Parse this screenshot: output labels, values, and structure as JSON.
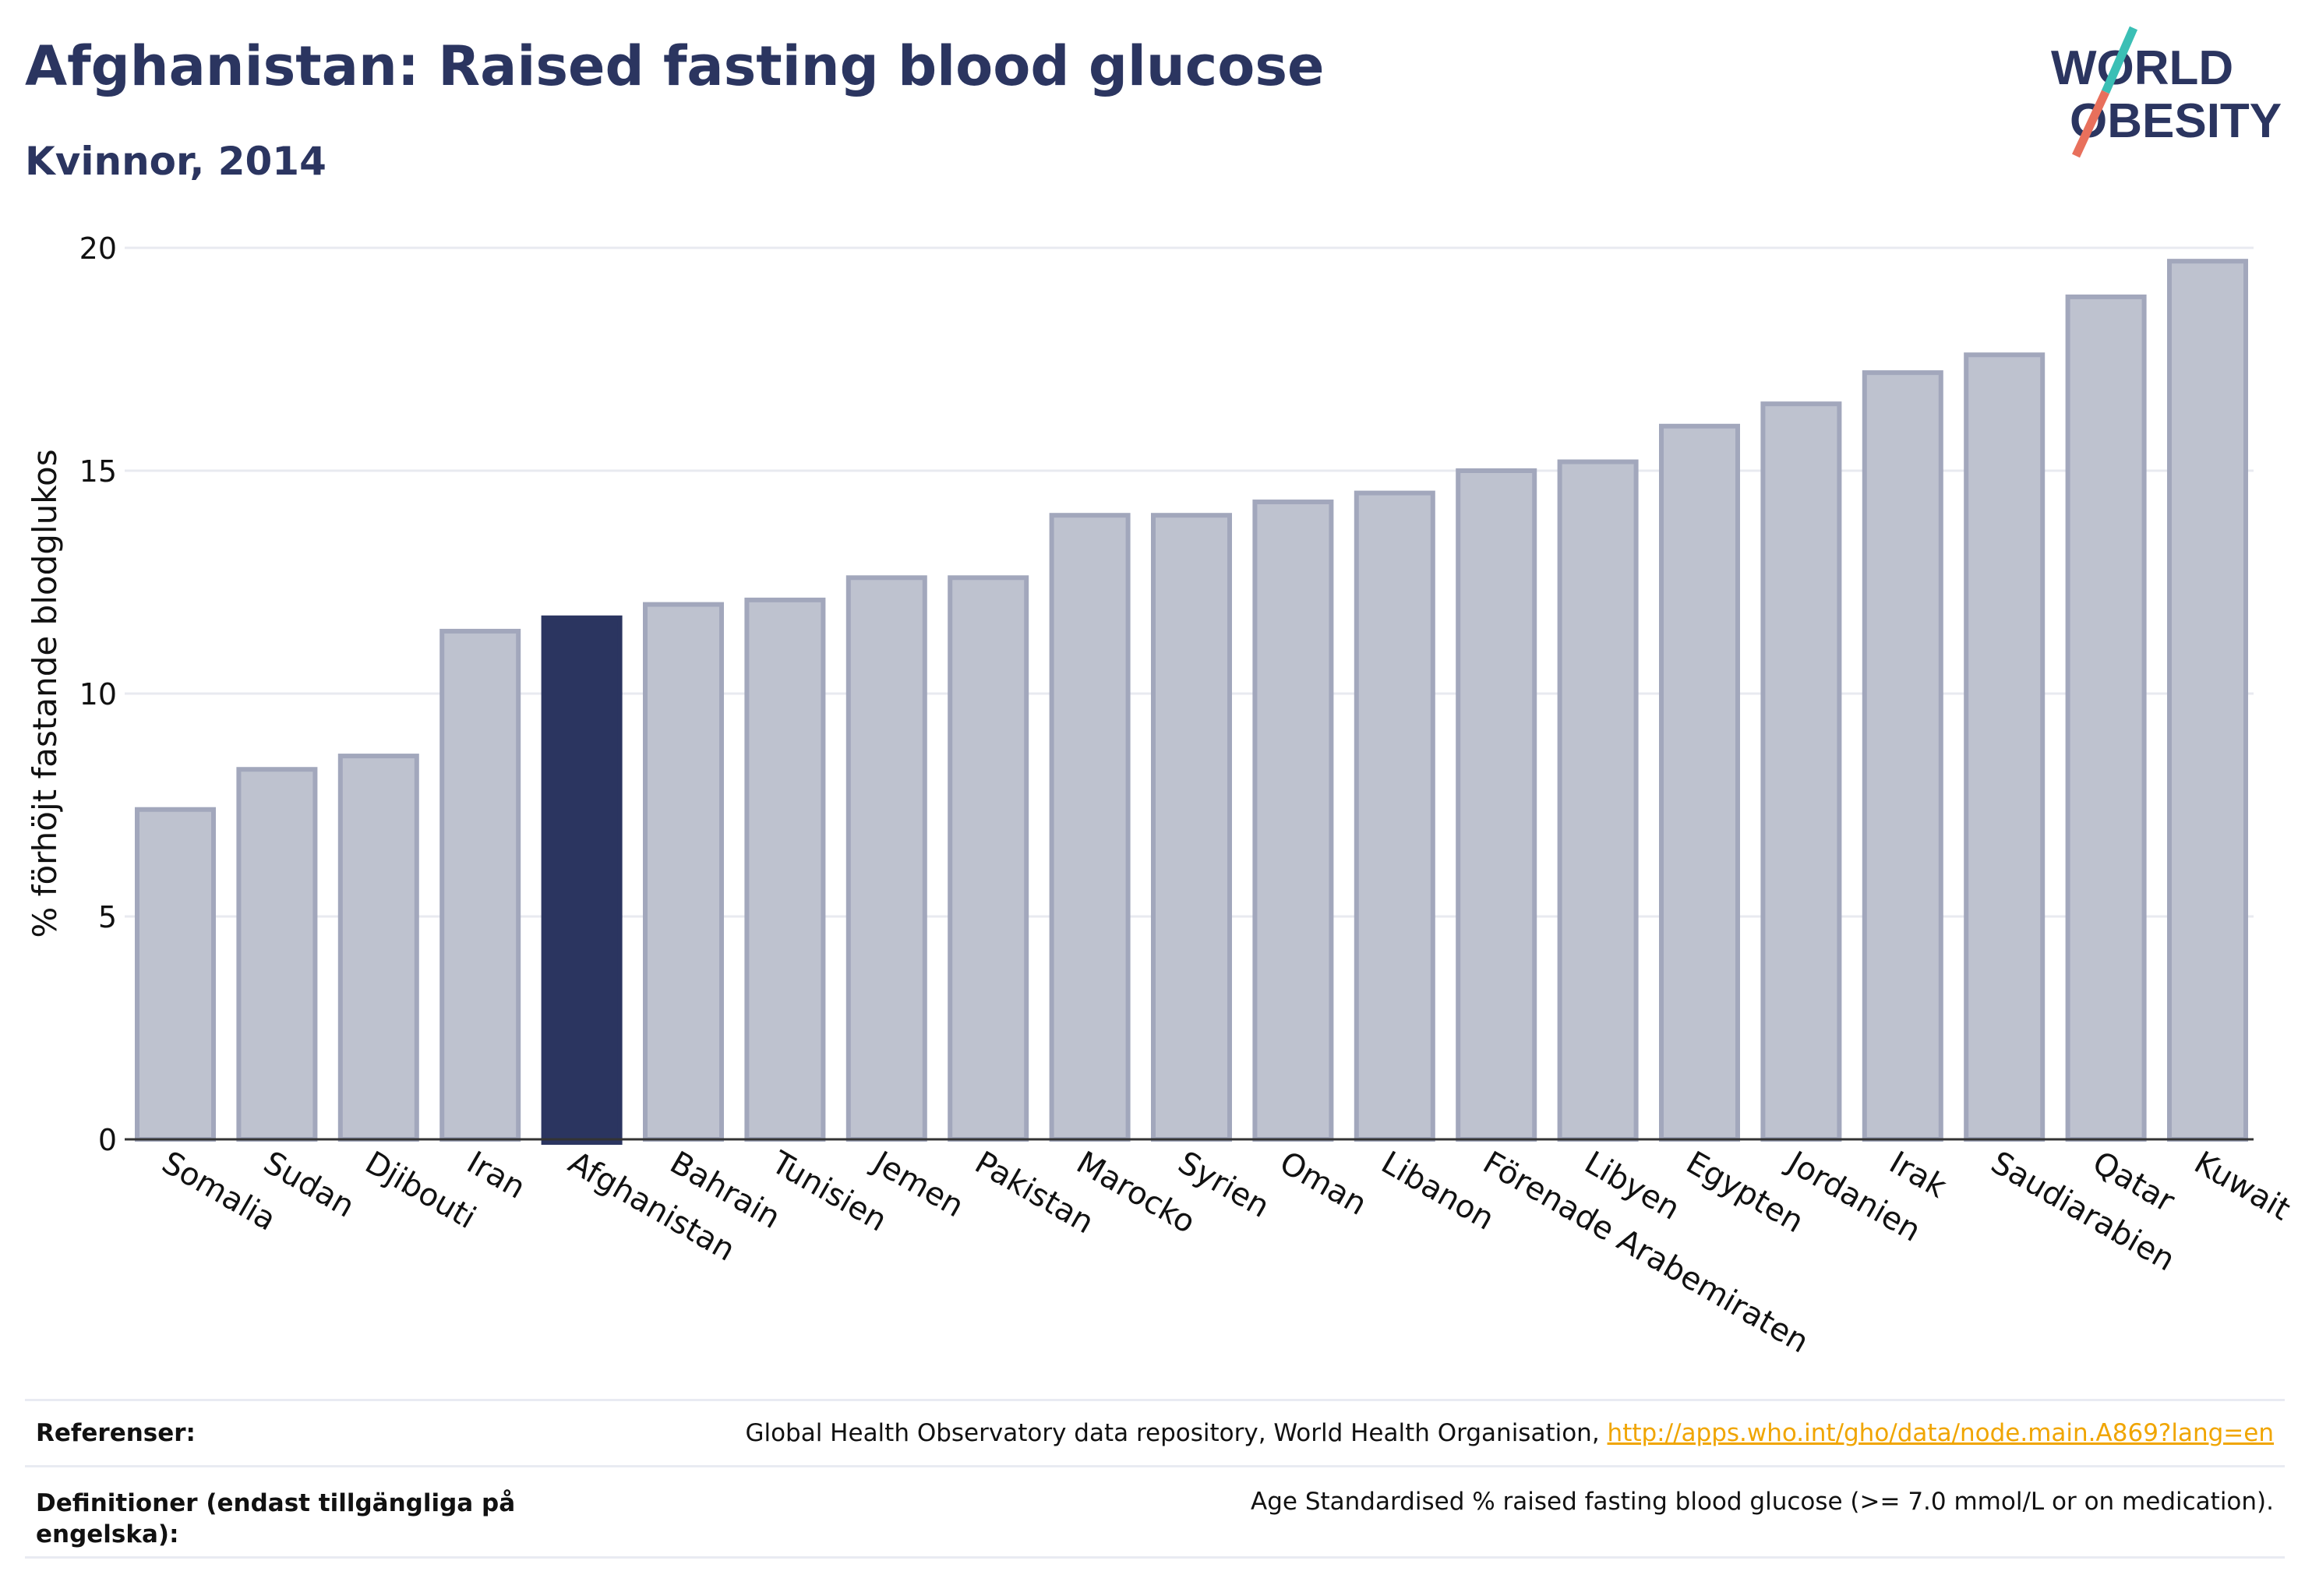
{
  "header": {
    "title": "Afghanistan: Raised fasting blood glucose",
    "subtitle": "Kvinnor, 2014"
  },
  "logo": {
    "line1": "WORLD",
    "line2": "OBESITY",
    "icon": "world-obesity-logo"
  },
  "chart_data": {
    "type": "bar",
    "categories": [
      "Somalia",
      "Sudan",
      "Djibouti",
      "Iran",
      "Afghanistan",
      "Bahrain",
      "Tunisien",
      "Jemen",
      "Pakistan",
      "Marocko",
      "Syrien",
      "Oman",
      "Libanon",
      "Förenade Arabemiraten",
      "Libyen",
      "Egypten",
      "Jordanien",
      "Irak",
      "Saudiarabien",
      "Qatar",
      "Kuwait"
    ],
    "values": [
      7.4,
      8.3,
      8.6,
      11.4,
      11.7,
      12.0,
      12.1,
      12.6,
      12.6,
      14.0,
      14.0,
      14.3,
      14.5,
      15.0,
      15.2,
      16.0,
      16.5,
      17.2,
      17.6,
      18.9,
      19.7
    ],
    "highlight": "Afghanistan",
    "ylabel": "% förhöjt fastande blodglukos",
    "xlabel": "",
    "ylim": [
      0,
      20
    ],
    "yticks": [
      0,
      5,
      10,
      15,
      20
    ],
    "grid": true,
    "colors": {
      "highlight": "#2b3560",
      "bar_fill": "#bec2cf",
      "bar_stroke": "#a2a7bc"
    }
  },
  "footer": {
    "references_label": "Referenser:",
    "references_text": "Global Health Observatory data repository, World Health Organisation, ",
    "references_link": "http://apps.who.int/gho/data/node.main.A869?lang=en",
    "definitions_label": "Definitioner (endast tillgängliga på engelska):",
    "definitions_text": "Age Standardised % raised fasting blood glucose (>= 7.0 mmol/L or on medication)."
  }
}
